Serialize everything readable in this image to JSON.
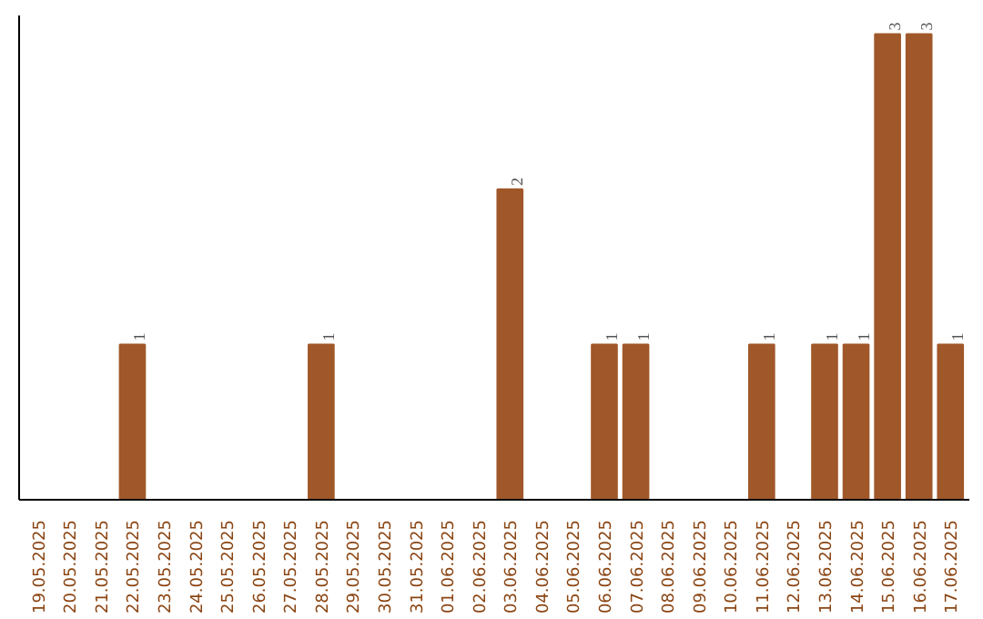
{
  "chart_data": {
    "type": "bar",
    "categories": [
      "19.05.2025",
      "20.05.2025",
      "21.05.2025",
      "22.05.2025",
      "23.05.2025",
      "24.05.2025",
      "25.05.2025",
      "26.05.2025",
      "27.05.2025",
      "28.05.2025",
      "29.05.2025",
      "30.05.2025",
      "31.05.2025",
      "01.06.2025",
      "02.06.2025",
      "03.06.2025",
      "04.06.2025",
      "05.06.2025",
      "06.06.2025",
      "07.06.2025",
      "08.06.2025",
      "09.06.2025",
      "10.06.2025",
      "11.06.2025",
      "12.06.2025",
      "13.06.2025",
      "14.06.2025",
      "15.06.2025",
      "16.06.2025",
      "17.06.2025"
    ],
    "values": [
      0,
      0,
      0,
      1,
      0,
      0,
      0,
      0,
      0,
      1,
      0,
      0,
      0,
      0,
      0,
      2,
      0,
      0,
      1,
      1,
      0,
      0,
      0,
      1,
      0,
      1,
      1,
      3,
      3,
      1
    ],
    "value_labels": [
      null,
      null,
      null,
      "1",
      null,
      null,
      null,
      null,
      null,
      "1",
      null,
      null,
      null,
      null,
      null,
      "2",
      null,
      null,
      "1",
      "1",
      null,
      null,
      null,
      "1",
      null,
      "1",
      "1",
      "3",
      "3",
      "1"
    ],
    "color": "#a0582a",
    "tick_labels": "x",
    "grid": false
  }
}
